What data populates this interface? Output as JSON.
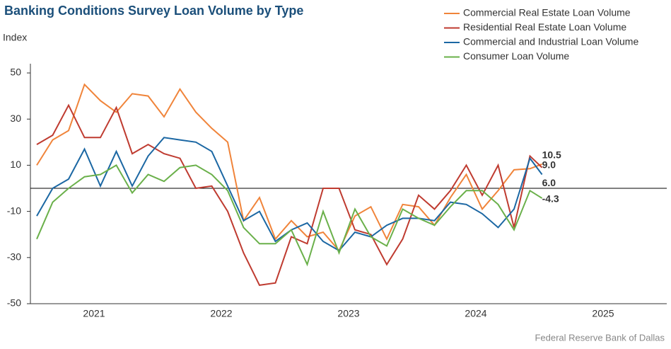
{
  "chart_data": {
    "type": "line",
    "title": "Banking Conditions Survey Loan Volume by Type",
    "y_label": "Index",
    "source": "Federal Reserve Bank of Dallas",
    "x": [
      2021.05,
      2021.175,
      2021.3,
      2021.425,
      2021.55,
      2021.675,
      2021.8,
      2021.925,
      2022.05,
      2022.175,
      2022.3,
      2022.425,
      2022.55,
      2022.675,
      2022.8,
      2022.925,
      2023.05,
      2023.175,
      2023.3,
      2023.425,
      2023.55,
      2023.675,
      2023.8,
      2023.925,
      2024.05,
      2024.175,
      2024.3,
      2024.425,
      2024.55,
      2024.675,
      2024.8,
      2024.925,
      2025.02
    ],
    "xlim": [
      2021,
      2026
    ],
    "xticks": [
      {
        "value": 2021.5,
        "label": "2021"
      },
      {
        "value": 2022.5,
        "label": "2022"
      },
      {
        "value": 2023.5,
        "label": "2023"
      },
      {
        "value": 2024.5,
        "label": "2024"
      },
      {
        "value": 2025.5,
        "label": "2025"
      }
    ],
    "ylim": [
      -50,
      54
    ],
    "yticks": [
      -50,
      -30,
      -10,
      10,
      30,
      50
    ],
    "zero_line": true,
    "legend": "top-right",
    "series": [
      {
        "name": "Commercial Real Estate Loan Volume",
        "color": "#f0843a",
        "end_label": "10.5",
        "values": [
          10,
          21,
          25,
          45,
          38,
          33,
          41,
          40,
          31,
          43,
          33,
          26,
          20,
          -14,
          -4,
          -22,
          -14,
          -21,
          -19,
          -27,
          -12,
          -8,
          -22,
          -7,
          -8,
          -16,
          -4,
          6,
          -9,
          -1,
          8,
          8.5,
          10.5
        ]
      },
      {
        "name": "Residential Real Estate Loan Volume",
        "color": "#bf3b30",
        "end_label": "9.0",
        "values": [
          19,
          23,
          36,
          22,
          22,
          35,
          15,
          19,
          15,
          13,
          0,
          1,
          -10,
          -28,
          -42,
          -41,
          -21,
          -24,
          0,
          0,
          -18,
          -20,
          -33,
          -22,
          -3,
          -9,
          -1,
          10,
          -3,
          10,
          -17,
          14,
          9
        ]
      },
      {
        "name": "Commercial and Industrial Loan Volume",
        "color": "#1b67a3",
        "end_label": "6.0",
        "values": [
          -12,
          0,
          4,
          17,
          1,
          16,
          1,
          14,
          22,
          21,
          20,
          16,
          1,
          -14,
          -10,
          -23,
          -18,
          -15,
          -23,
          -27,
          -19,
          -21,
          -16,
          -13,
          -13,
          -14,
          -6,
          -7,
          -11,
          -17,
          -9,
          13,
          6
        ]
      },
      {
        "name": "Consumer Loan Volume",
        "color": "#6ab04a",
        "end_label": "-4.3",
        "values": [
          -22,
          -6,
          0,
          5,
          6,
          10,
          -2,
          6,
          3,
          9,
          10,
          6,
          -1,
          -17,
          -24,
          -24,
          -18,
          -33,
          -10,
          -28,
          -9,
          -21,
          -25,
          -9,
          -13,
          -16,
          -8,
          -1,
          -1,
          -7,
          -18,
          -1,
          -4.3
        ]
      }
    ]
  }
}
